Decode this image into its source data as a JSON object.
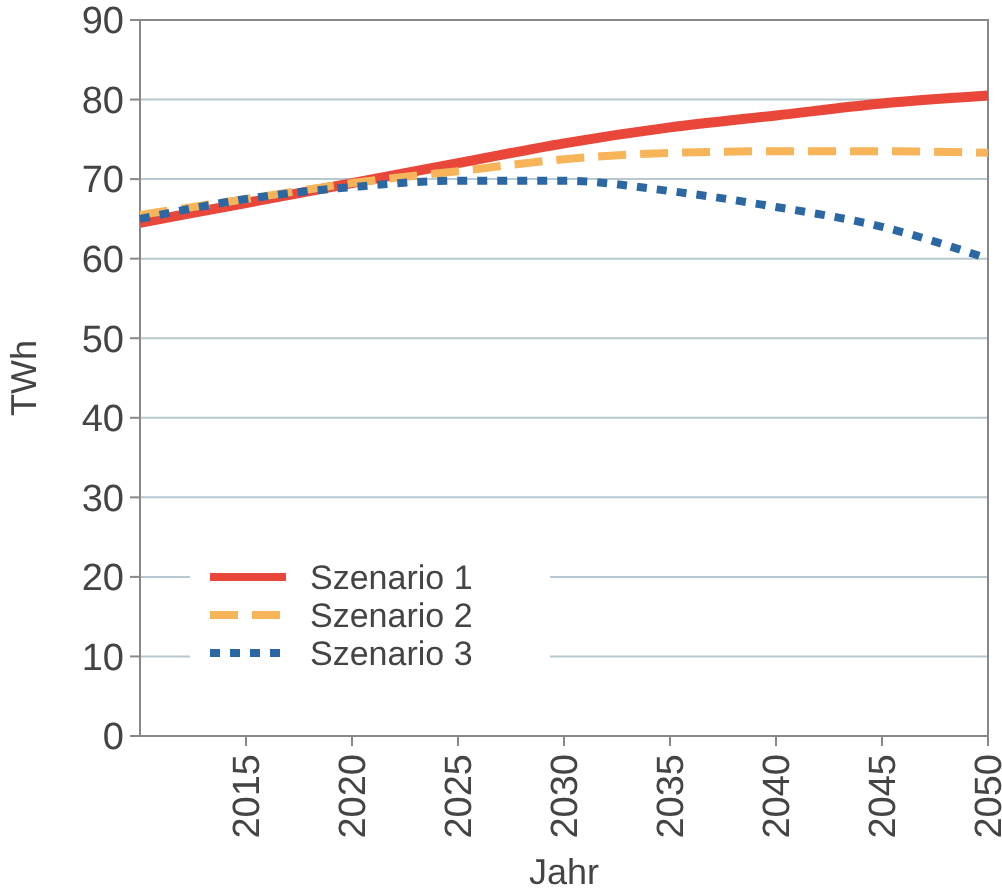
{
  "chart_data": {
    "type": "line",
    "xlabel": "Jahr",
    "ylabel": "TWh",
    "x": [
      2010,
      2015,
      2020,
      2025,
      2030,
      2035,
      2040,
      2045,
      2050
    ],
    "series": [
      {
        "name": "Szenario 1",
        "color": "#e8473a",
        "line_style": "solid",
        "values": [
          64.5,
          67,
          69.5,
          72,
          74.5,
          76.5,
          78,
          79.5,
          80.5
        ]
      },
      {
        "name": "Szenario 2",
        "color": "#f7b458",
        "line_style": "dashed",
        "values": [
          65.5,
          67.5,
          69.5,
          71,
          72.5,
          73.3,
          73.5,
          73.5,
          73.3
        ]
      },
      {
        "name": "Szenario 3",
        "color": "#2b68a3",
        "line_style": "dotted",
        "values": [
          65,
          67.5,
          69,
          69.8,
          69.8,
          68.5,
          66.5,
          64,
          60
        ]
      }
    ],
    "xlim": [
      2010,
      2050
    ],
    "xticks": [
      2015,
      2020,
      2025,
      2030,
      2035,
      2040,
      2045,
      2050
    ],
    "ylim": [
      0,
      90
    ],
    "yticks": [
      0,
      10,
      20,
      30,
      40,
      50,
      60,
      70,
      80,
      90
    ],
    "grid": "y",
    "legend": "bottom left"
  }
}
